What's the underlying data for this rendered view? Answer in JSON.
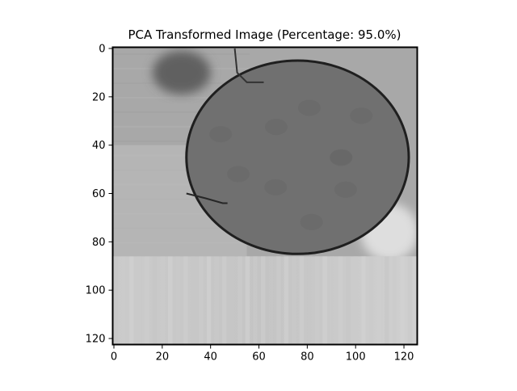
{
  "chart_data": {
    "type": "heatmap",
    "title": "PCA Transformed Image (Percentage: 95.0%)",
    "colormap": "gray",
    "image_width": 126,
    "image_height": 123,
    "xlim": [
      -0.5,
      125.5
    ],
    "ylim": [
      122.5,
      -0.5
    ],
    "x_ticks": [
      0,
      20,
      40,
      60,
      80,
      100,
      120
    ],
    "y_ticks": [
      0,
      20,
      40,
      60,
      80,
      100,
      120
    ],
    "x_tick_labels": [
      "0",
      "20",
      "40",
      "60",
      "80",
      "100",
      "120"
    ],
    "y_tick_labels": [
      "0",
      "20",
      "40",
      "60",
      "80",
      "100",
      "120"
    ],
    "regions": [
      {
        "name": "background-upper",
        "gray": 0.66
      },
      {
        "name": "dark-blob-top-left",
        "center": [
          28,
          10
        ],
        "radius": [
          12,
          9
        ],
        "gray": 0.38
      },
      {
        "name": "round-object",
        "center": [
          76,
          45
        ],
        "radius": [
          46,
          40
        ],
        "gray": 0.44,
        "outline_gray": 0.12
      },
      {
        "name": "light-patch-right",
        "center": [
          114,
          76
        ],
        "radius": [
          12,
          12
        ],
        "gray": 0.87
      },
      {
        "name": "lower-band",
        "y_range": [
          86,
          122.5
        ],
        "gray": 0.8
      }
    ]
  }
}
